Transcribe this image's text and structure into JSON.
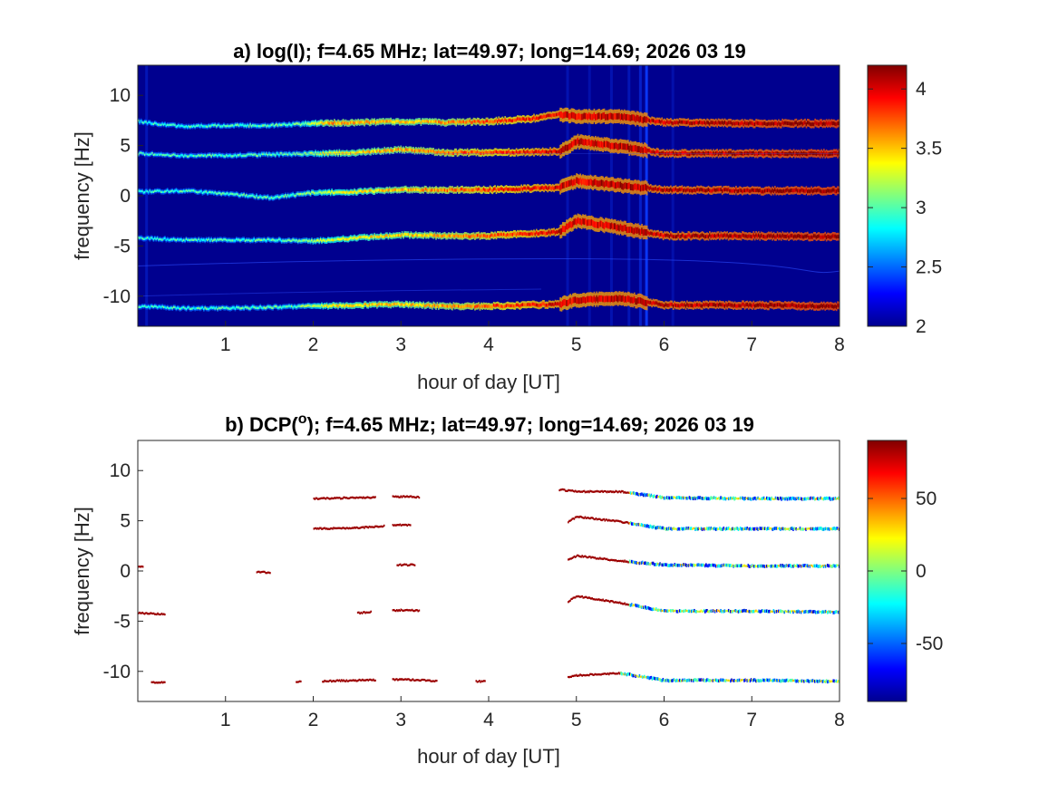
{
  "chart_data": [
    {
      "type": "heatmap",
      "panel": "a",
      "title_prefix": "a) log(I); f=4.65 MHz;  lat=49.97; long=14.69; 2026 03 19",
      "quantity": "log(I)",
      "frequency_mhz": 4.65,
      "lat": 49.97,
      "long": 14.69,
      "date": "2026 03 19",
      "xlabel": "hour of day [UT]",
      "ylabel": "frequency [Hz]",
      "xlim": [
        0,
        8
      ],
      "ylim": [
        -13,
        13
      ],
      "xticks": [
        1,
        2,
        3,
        4,
        5,
        6,
        7,
        8
      ],
      "yticks": [
        -10,
        -5,
        0,
        5,
        10
      ],
      "background_value": 2.0,
      "colorbar": {
        "min": 2,
        "max": 4.2,
        "ticks": [
          2,
          2.5,
          3,
          3.5,
          4
        ],
        "tick_labels": [
          "2",
          "2.5",
          "3",
          "3.5",
          "4"
        ]
      },
      "traces": [
        {
          "name": "trace-1",
          "points": [
            [
              0,
              7.4
            ],
            [
              0.5,
              6.9
            ],
            [
              1,
              7.0
            ],
            [
              1.5,
              7.0
            ],
            [
              2,
              7.2
            ],
            [
              2.5,
              7.3
            ],
            [
              3,
              7.4
            ],
            [
              3.5,
              7.3
            ],
            [
              4,
              7.4
            ],
            [
              4.5,
              7.7
            ],
            [
              4.8,
              8.1
            ],
            [
              5,
              7.9
            ],
            [
              5.5,
              7.9
            ],
            [
              6,
              7.3
            ],
            [
              7,
              7.2
            ],
            [
              8,
              7.2
            ]
          ],
          "intensity": [
            [
              0,
              2.9
            ],
            [
              1.8,
              3.0
            ],
            [
              2.2,
              3.6
            ],
            [
              3.2,
              3.5
            ],
            [
              4.8,
              4.0
            ],
            [
              8,
              4.2
            ]
          ]
        },
        {
          "name": "trace-2",
          "points": [
            [
              0,
              4.2
            ],
            [
              0.5,
              4.0
            ],
            [
              1,
              4.0
            ],
            [
              1.5,
              4.1
            ],
            [
              2,
              4.2
            ],
            [
              2.5,
              4.3
            ],
            [
              3,
              4.6
            ],
            [
              3.5,
              4.3
            ],
            [
              4,
              4.3
            ],
            [
              4.8,
              4.4
            ],
            [
              5,
              5.4
            ],
            [
              5.5,
              4.9
            ],
            [
              6,
              4.2
            ],
            [
              7,
              4.2
            ],
            [
              8,
              4.2
            ]
          ],
          "intensity": [
            [
              0,
              2.9
            ],
            [
              1.8,
              3.0
            ],
            [
              2.2,
              3.4
            ],
            [
              3.2,
              3.6
            ],
            [
              4.8,
              4.0
            ],
            [
              8,
              4.2
            ]
          ]
        },
        {
          "name": "trace-3",
          "points": [
            [
              0,
              0.4
            ],
            [
              0.5,
              0.5
            ],
            [
              1,
              0.2
            ],
            [
              1.5,
              -0.2
            ],
            [
              2,
              0.3
            ],
            [
              2.5,
              0.4
            ],
            [
              3,
              0.6
            ],
            [
              3.5,
              0.6
            ],
            [
              4,
              0.6
            ],
            [
              4.8,
              0.8
            ],
            [
              5,
              1.5
            ],
            [
              5.5,
              1.0
            ],
            [
              6,
              0.6
            ],
            [
              7,
              0.5
            ],
            [
              8,
              0.5
            ]
          ],
          "intensity": [
            [
              0,
              2.9
            ],
            [
              1.8,
              3.0
            ],
            [
              2.2,
              3.3
            ],
            [
              3.2,
              3.6
            ],
            [
              4.8,
              4.0
            ],
            [
              8,
              4.2
            ]
          ]
        },
        {
          "name": "trace-4",
          "points": [
            [
              0,
              -4.2
            ],
            [
              0.5,
              -4.4
            ],
            [
              1,
              -4.4
            ],
            [
              1.5,
              -4.4
            ],
            [
              2,
              -4.5
            ],
            [
              2.5,
              -4.2
            ],
            [
              3,
              -3.9
            ],
            [
              3.5,
              -4.0
            ],
            [
              4,
              -4.0
            ],
            [
              4.8,
              -3.6
            ],
            [
              5,
              -2.5
            ],
            [
              5.5,
              -3.2
            ],
            [
              6,
              -4.0
            ],
            [
              7,
              -4.0
            ],
            [
              8,
              -4.1
            ]
          ],
          "intensity": [
            [
              0,
              2.9
            ],
            [
              1.8,
              3.0
            ],
            [
              2.2,
              3.3
            ],
            [
              3.2,
              3.5
            ],
            [
              4.8,
              4.0
            ],
            [
              8,
              4.2
            ]
          ]
        },
        {
          "name": "trace-5",
          "points": [
            [
              0,
              -11.0
            ],
            [
              0.5,
              -11.2
            ],
            [
              1,
              -11.2
            ],
            [
              1.5,
              -11.1
            ],
            [
              2,
              -11.0
            ],
            [
              2.5,
              -10.9
            ],
            [
              3,
              -10.8
            ],
            [
              3.5,
              -11.0
            ],
            [
              4,
              -11.0
            ],
            [
              4.8,
              -10.8
            ],
            [
              5,
              -10.4
            ],
            [
              5.5,
              -10.2
            ],
            [
              6,
              -10.9
            ],
            [
              7,
              -10.9
            ],
            [
              8,
              -11.0
            ]
          ],
          "intensity": [
            [
              0,
              2.9
            ],
            [
              1.8,
              3.0
            ],
            [
              2.2,
              3.4
            ],
            [
              3.2,
              3.5
            ],
            [
              4.8,
              4.0
            ],
            [
              8,
              4.2
            ]
          ]
        }
      ]
    },
    {
      "type": "scatter",
      "panel": "b",
      "title_prefix": "b) DCP(",
      "title_superscript": "o",
      "title_suffix": "); f=4.65 MHz;  lat=49.97; long=14.69; 2026 03 19",
      "quantity": "DCP (degrees)",
      "frequency_mhz": 4.65,
      "lat": 49.97,
      "long": 14.69,
      "date": "2026 03 19",
      "xlabel": "hour of day [UT]",
      "ylabel": "frequency [Hz]",
      "xlim": [
        0,
        8
      ],
      "ylim": [
        -13,
        13
      ],
      "xticks": [
        1,
        2,
        3,
        4,
        5,
        6,
        7,
        8
      ],
      "yticks": [
        -10,
        -5,
        0,
        5,
        10
      ],
      "colorbar": {
        "min": -90,
        "max": 90,
        "ticks": [
          -50,
          0,
          50
        ],
        "tick_labels": [
          "-50",
          "0",
          "50"
        ]
      },
      "segments": [
        {
          "trace": "trace-1",
          "x_start": 2.0,
          "x_end": 2.7,
          "dcp": 85
        },
        {
          "trace": "trace-1",
          "x_start": 2.9,
          "x_end": 3.2,
          "dcp": 85
        },
        {
          "trace": "trace-1",
          "x_start": 4.8,
          "x_end": 5.6,
          "dcp": 85
        },
        {
          "trace": "trace-1",
          "x_start": 5.6,
          "x_end": 8.0,
          "dcp": -20
        },
        {
          "trace": "trace-2",
          "x_start": 2.0,
          "x_end": 2.8,
          "dcp": 85
        },
        {
          "trace": "trace-2",
          "x_start": 2.9,
          "x_end": 3.1,
          "dcp": 85
        },
        {
          "trace": "trace-2",
          "x_start": 4.9,
          "x_end": 5.6,
          "dcp": 85
        },
        {
          "trace": "trace-2",
          "x_start": 5.6,
          "x_end": 8.0,
          "dcp": -20
        },
        {
          "trace": "trace-3",
          "x_start": 0.0,
          "x_end": 0.05,
          "dcp": 85
        },
        {
          "trace": "trace-3",
          "x_start": 1.35,
          "x_end": 1.5,
          "dcp": 85
        },
        {
          "trace": "trace-3",
          "x_start": 2.95,
          "x_end": 3.15,
          "dcp": 85
        },
        {
          "trace": "trace-3",
          "x_start": 4.9,
          "x_end": 5.6,
          "dcp": 85
        },
        {
          "trace": "trace-3",
          "x_start": 5.6,
          "x_end": 8.0,
          "dcp": -20
        },
        {
          "trace": "trace-4",
          "x_start": 0.0,
          "x_end": 0.3,
          "dcp": 85
        },
        {
          "trace": "trace-4",
          "x_start": 2.5,
          "x_end": 2.65,
          "dcp": 85
        },
        {
          "trace": "trace-4",
          "x_start": 2.9,
          "x_end": 3.2,
          "dcp": 85
        },
        {
          "trace": "trace-4",
          "x_start": 4.9,
          "x_end": 5.6,
          "dcp": 85
        },
        {
          "trace": "trace-4",
          "x_start": 5.6,
          "x_end": 8.0,
          "dcp": -20
        },
        {
          "trace": "trace-5",
          "x_start": 0.15,
          "x_end": 0.3,
          "dcp": 85
        },
        {
          "trace": "trace-5",
          "x_start": 1.8,
          "x_end": 1.85,
          "dcp": 85
        },
        {
          "trace": "trace-5",
          "x_start": 2.1,
          "x_end": 2.7,
          "dcp": 85
        },
        {
          "trace": "trace-5",
          "x_start": 2.9,
          "x_end": 3.4,
          "dcp": 85
        },
        {
          "trace": "trace-5",
          "x_start": 3.85,
          "x_end": 3.95,
          "dcp": 85
        },
        {
          "trace": "trace-5",
          "x_start": 4.9,
          "x_end": 5.5,
          "dcp": 85
        },
        {
          "trace": "trace-5",
          "x_start": 5.5,
          "x_end": 8.0,
          "dcp": -20
        }
      ]
    }
  ]
}
